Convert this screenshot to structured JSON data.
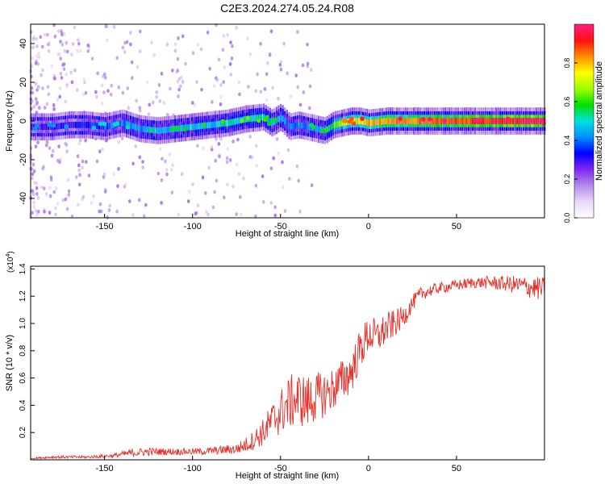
{
  "title": "C2E3.2024.274.05.24.R08",
  "colors": {
    "snr_line": "#e8302a",
    "axis": "#000000",
    "scale": [
      "#ffffff",
      "#e8d8f8",
      "#b48ae8",
      "#7f28f0",
      "#0000ff",
      "#0090ff",
      "#00e0e0",
      "#00e000",
      "#a0ff00",
      "#ffff00",
      "#ff8c00",
      "#ff1010",
      "#ff2080"
    ]
  },
  "chart_data": [
    {
      "type": "heatmap",
      "xlabel": "Height of straight line (km)",
      "ylabel": "Frequency (Hz)",
      "xlim": [
        -192,
        100
      ],
      "ylim": [
        -50,
        50
      ],
      "xticks": [
        -150,
        -100,
        -50,
        0,
        50
      ],
      "yticks": [
        -40,
        -20,
        0,
        20,
        40
      ],
      "grid": false,
      "colorbar": {
        "label": "Normalized spectral amplitude",
        "range": [
          0,
          1
        ],
        "ticks": [
          "0.0",
          "0.2",
          "0.4",
          "0.6",
          "0.8"
        ]
      },
      "ridge": {
        "x": [
          -190,
          -180,
          -170,
          -160,
          -150,
          -140,
          -130,
          -120,
          -110,
          -100,
          -90,
          -80,
          -70,
          -60,
          -55,
          -50,
          -45,
          -40,
          -35,
          -30,
          -25,
          -20,
          -15,
          -10,
          -5,
          0,
          10,
          20,
          30,
          40,
          50,
          60,
          70,
          80,
          90,
          99
        ],
        "freq": [
          -3,
          -3,
          -2,
          -2,
          -3,
          -1,
          -4,
          -5,
          -4,
          -3,
          -2,
          -1,
          1,
          2,
          -1,
          2,
          -3,
          -2,
          -3,
          -4,
          -5,
          -2,
          -1,
          0,
          0,
          -1,
          0,
          0,
          0,
          0,
          0,
          0,
          0,
          0,
          0,
          0
        ],
        "amplitude": [
          0.3,
          0.3,
          0.32,
          0.34,
          0.38,
          0.4,
          0.42,
          0.44,
          0.45,
          0.46,
          0.48,
          0.5,
          0.52,
          0.5,
          0.45,
          0.45,
          0.4,
          0.4,
          0.42,
          0.45,
          0.45,
          0.6,
          0.7,
          0.75,
          0.78,
          0.8,
          0.82,
          0.84,
          0.85,
          0.86,
          0.88,
          0.9,
          0.92,
          0.93,
          0.94,
          0.95
        ]
      }
    },
    {
      "type": "line",
      "xlabel": "Height of straight line (km)",
      "ylabel": "SNR (10 * v/v)",
      "multiplier": "(x10",
      "multiplier_exp": "4",
      "multiplier_close": ")",
      "xlim": [
        -192,
        100
      ],
      "ylim": [
        0,
        1.42
      ],
      "xticks": [
        -150,
        -100,
        -50,
        0,
        50
      ],
      "yticks": [
        "0.2",
        "0.4",
        "0.6",
        "0.8",
        "1.0",
        "1.2",
        "1.4"
      ],
      "grid": false,
      "series": [
        {
          "x": [
            -192,
            -180,
            -160,
            -145,
            -135,
            -125,
            -115,
            -105,
            -95,
            -85,
            -75,
            -68,
            -60,
            -55,
            -50,
            -45,
            -40,
            -35,
            -30,
            -25,
            -20,
            -15,
            -10,
            -5,
            0,
            5,
            10,
            15,
            20,
            25,
            30,
            40,
            50,
            60,
            70,
            80,
            90,
            100
          ],
          "y": [
            0.01,
            0.02,
            0.02,
            0.03,
            0.05,
            0.06,
            0.06,
            0.06,
            0.06,
            0.07,
            0.08,
            0.12,
            0.2,
            0.28,
            0.35,
            0.42,
            0.45,
            0.42,
            0.46,
            0.48,
            0.52,
            0.58,
            0.64,
            0.8,
            0.92,
            0.9,
            0.96,
            1.0,
            1.05,
            1.15,
            1.22,
            1.26,
            1.28,
            1.3,
            1.3,
            1.29,
            1.27,
            1.25
          ],
          "noise": [
            0.005,
            0.01,
            0.01,
            0.015,
            0.03,
            0.03,
            0.025,
            0.025,
            0.025,
            0.03,
            0.04,
            0.06,
            0.1,
            0.14,
            0.17,
            0.2,
            0.2,
            0.2,
            0.18,
            0.17,
            0.16,
            0.16,
            0.16,
            0.15,
            0.14,
            0.13,
            0.12,
            0.1,
            0.08,
            0.06,
            0.05,
            0.04,
            0.04,
            0.04,
            0.05,
            0.06,
            0.08,
            0.09
          ]
        }
      ]
    }
  ]
}
